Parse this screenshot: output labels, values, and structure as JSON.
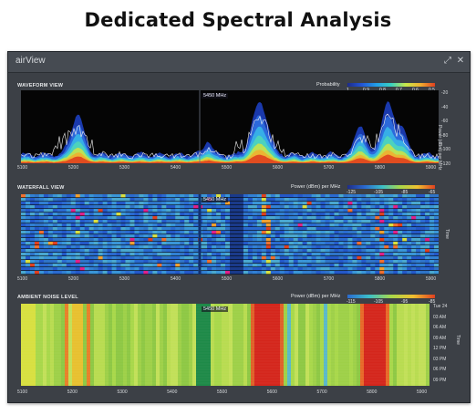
{
  "heading": "Dedicated Spectral Analysis",
  "window": {
    "title": "airView"
  },
  "freq_ticks": [
    "5100",
    "5200",
    "5300",
    "5400",
    "5500",
    "5600",
    "5700",
    "5800",
    "5900"
  ],
  "marker": "5450 MHz",
  "waveform": {
    "label": "WAVEFORM VIEW",
    "legend_title": "Probability",
    "legend_ticks": [
      "1",
      "0.9",
      "0.8",
      "0.7",
      "0.6",
      "0.5"
    ],
    "y_ticks": [
      "-20",
      "-40",
      "-60",
      "-80",
      "-100",
      "-120"
    ],
    "y_label": "Power (dBm) per MHz"
  },
  "waterfall": {
    "label": "WATERFALL VIEW",
    "legend_title": "Power (dBm) per MHz",
    "legend_ticks": [
      "-125",
      "-105",
      "-85",
      "-65"
    ],
    "y_label": "Time"
  },
  "ambient": {
    "label": "AMBIENT NOISE LEVEL",
    "legend_title": "Power (dBm) per MHz",
    "legend_ticks": [
      "-115",
      "-105",
      "-95",
      "-85"
    ],
    "time_ticks": [
      "Tue 24",
      "03 AM",
      "06 AM",
      "09 AM",
      "12 PM",
      "03 PM",
      "06 PM",
      "09 PM"
    ],
    "y_label": "Time"
  },
  "colors": {
    "window_bg": "#3c4046",
    "plot_bg": "#050505",
    "accent_red": "#d4261c",
    "accent_blue": "#1d3fbf"
  }
}
